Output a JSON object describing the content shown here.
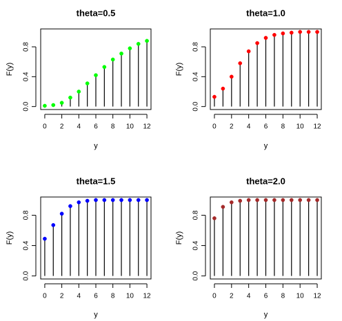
{
  "chart_data": [
    {
      "type": "scatter",
      "title": "theta=0.5",
      "xlabel": "y",
      "ylabel": "F(y)",
      "color": "#00ff00",
      "x": [
        0,
        1,
        2,
        3,
        4,
        5,
        6,
        7,
        8,
        9,
        10,
        11,
        12
      ],
      "y": [
        0.01,
        0.02,
        0.05,
        0.12,
        0.2,
        0.31,
        0.42,
        0.53,
        0.63,
        0.71,
        0.78,
        0.84,
        0.88
      ],
      "xticks": [
        "0",
        "2",
        "4",
        "6",
        "8",
        "10",
        "12"
      ],
      "yticks": [
        "0.0",
        "0.4",
        "0.8"
      ],
      "grid": false
    },
    {
      "type": "scatter",
      "title": "theta=1.0",
      "xlabel": "y",
      "ylabel": "F(y)",
      "color": "#ff0000",
      "x": [
        0,
        1,
        2,
        3,
        4,
        5,
        6,
        7,
        8,
        9,
        10,
        11,
        12
      ],
      "y": [
        0.13,
        0.24,
        0.4,
        0.58,
        0.74,
        0.85,
        0.92,
        0.96,
        0.98,
        0.99,
        1.0,
        1.0,
        1.0
      ],
      "xticks": [
        "0",
        "2",
        "4",
        "6",
        "8",
        "10",
        "12"
      ],
      "yticks": [
        "0.0",
        "0.4",
        "0.8"
      ],
      "grid": false
    },
    {
      "type": "scatter",
      "title": "theta=1.5",
      "xlabel": "y",
      "ylabel": "F(y)",
      "color": "#0000ff",
      "x": [
        0,
        1,
        2,
        3,
        4,
        5,
        6,
        7,
        8,
        9,
        10,
        11,
        12
      ],
      "y": [
        0.49,
        0.67,
        0.82,
        0.92,
        0.97,
        0.99,
        1.0,
        1.0,
        1.0,
        1.0,
        1.0,
        1.0,
        1.0
      ],
      "xticks": [
        "0",
        "2",
        "4",
        "6",
        "8",
        "10",
        "12"
      ],
      "yticks": [
        "0.0",
        "0.4",
        "0.8"
      ],
      "grid": false
    },
    {
      "type": "scatter",
      "title": "theta=2.0",
      "xlabel": "y",
      "ylabel": "F(y)",
      "color": "#a52a2a",
      "x": [
        0,
        1,
        2,
        3,
        4,
        5,
        6,
        7,
        8,
        9,
        10,
        11,
        12
      ],
      "y": [
        0.76,
        0.91,
        0.97,
        0.99,
        1.0,
        1.0,
        1.0,
        1.0,
        1.0,
        1.0,
        1.0,
        1.0,
        1.0
      ],
      "xticks": [
        "0",
        "2",
        "4",
        "6",
        "8",
        "10",
        "12"
      ],
      "yticks": [
        "0.0",
        "0.4",
        "0.8"
      ],
      "grid": false
    }
  ]
}
